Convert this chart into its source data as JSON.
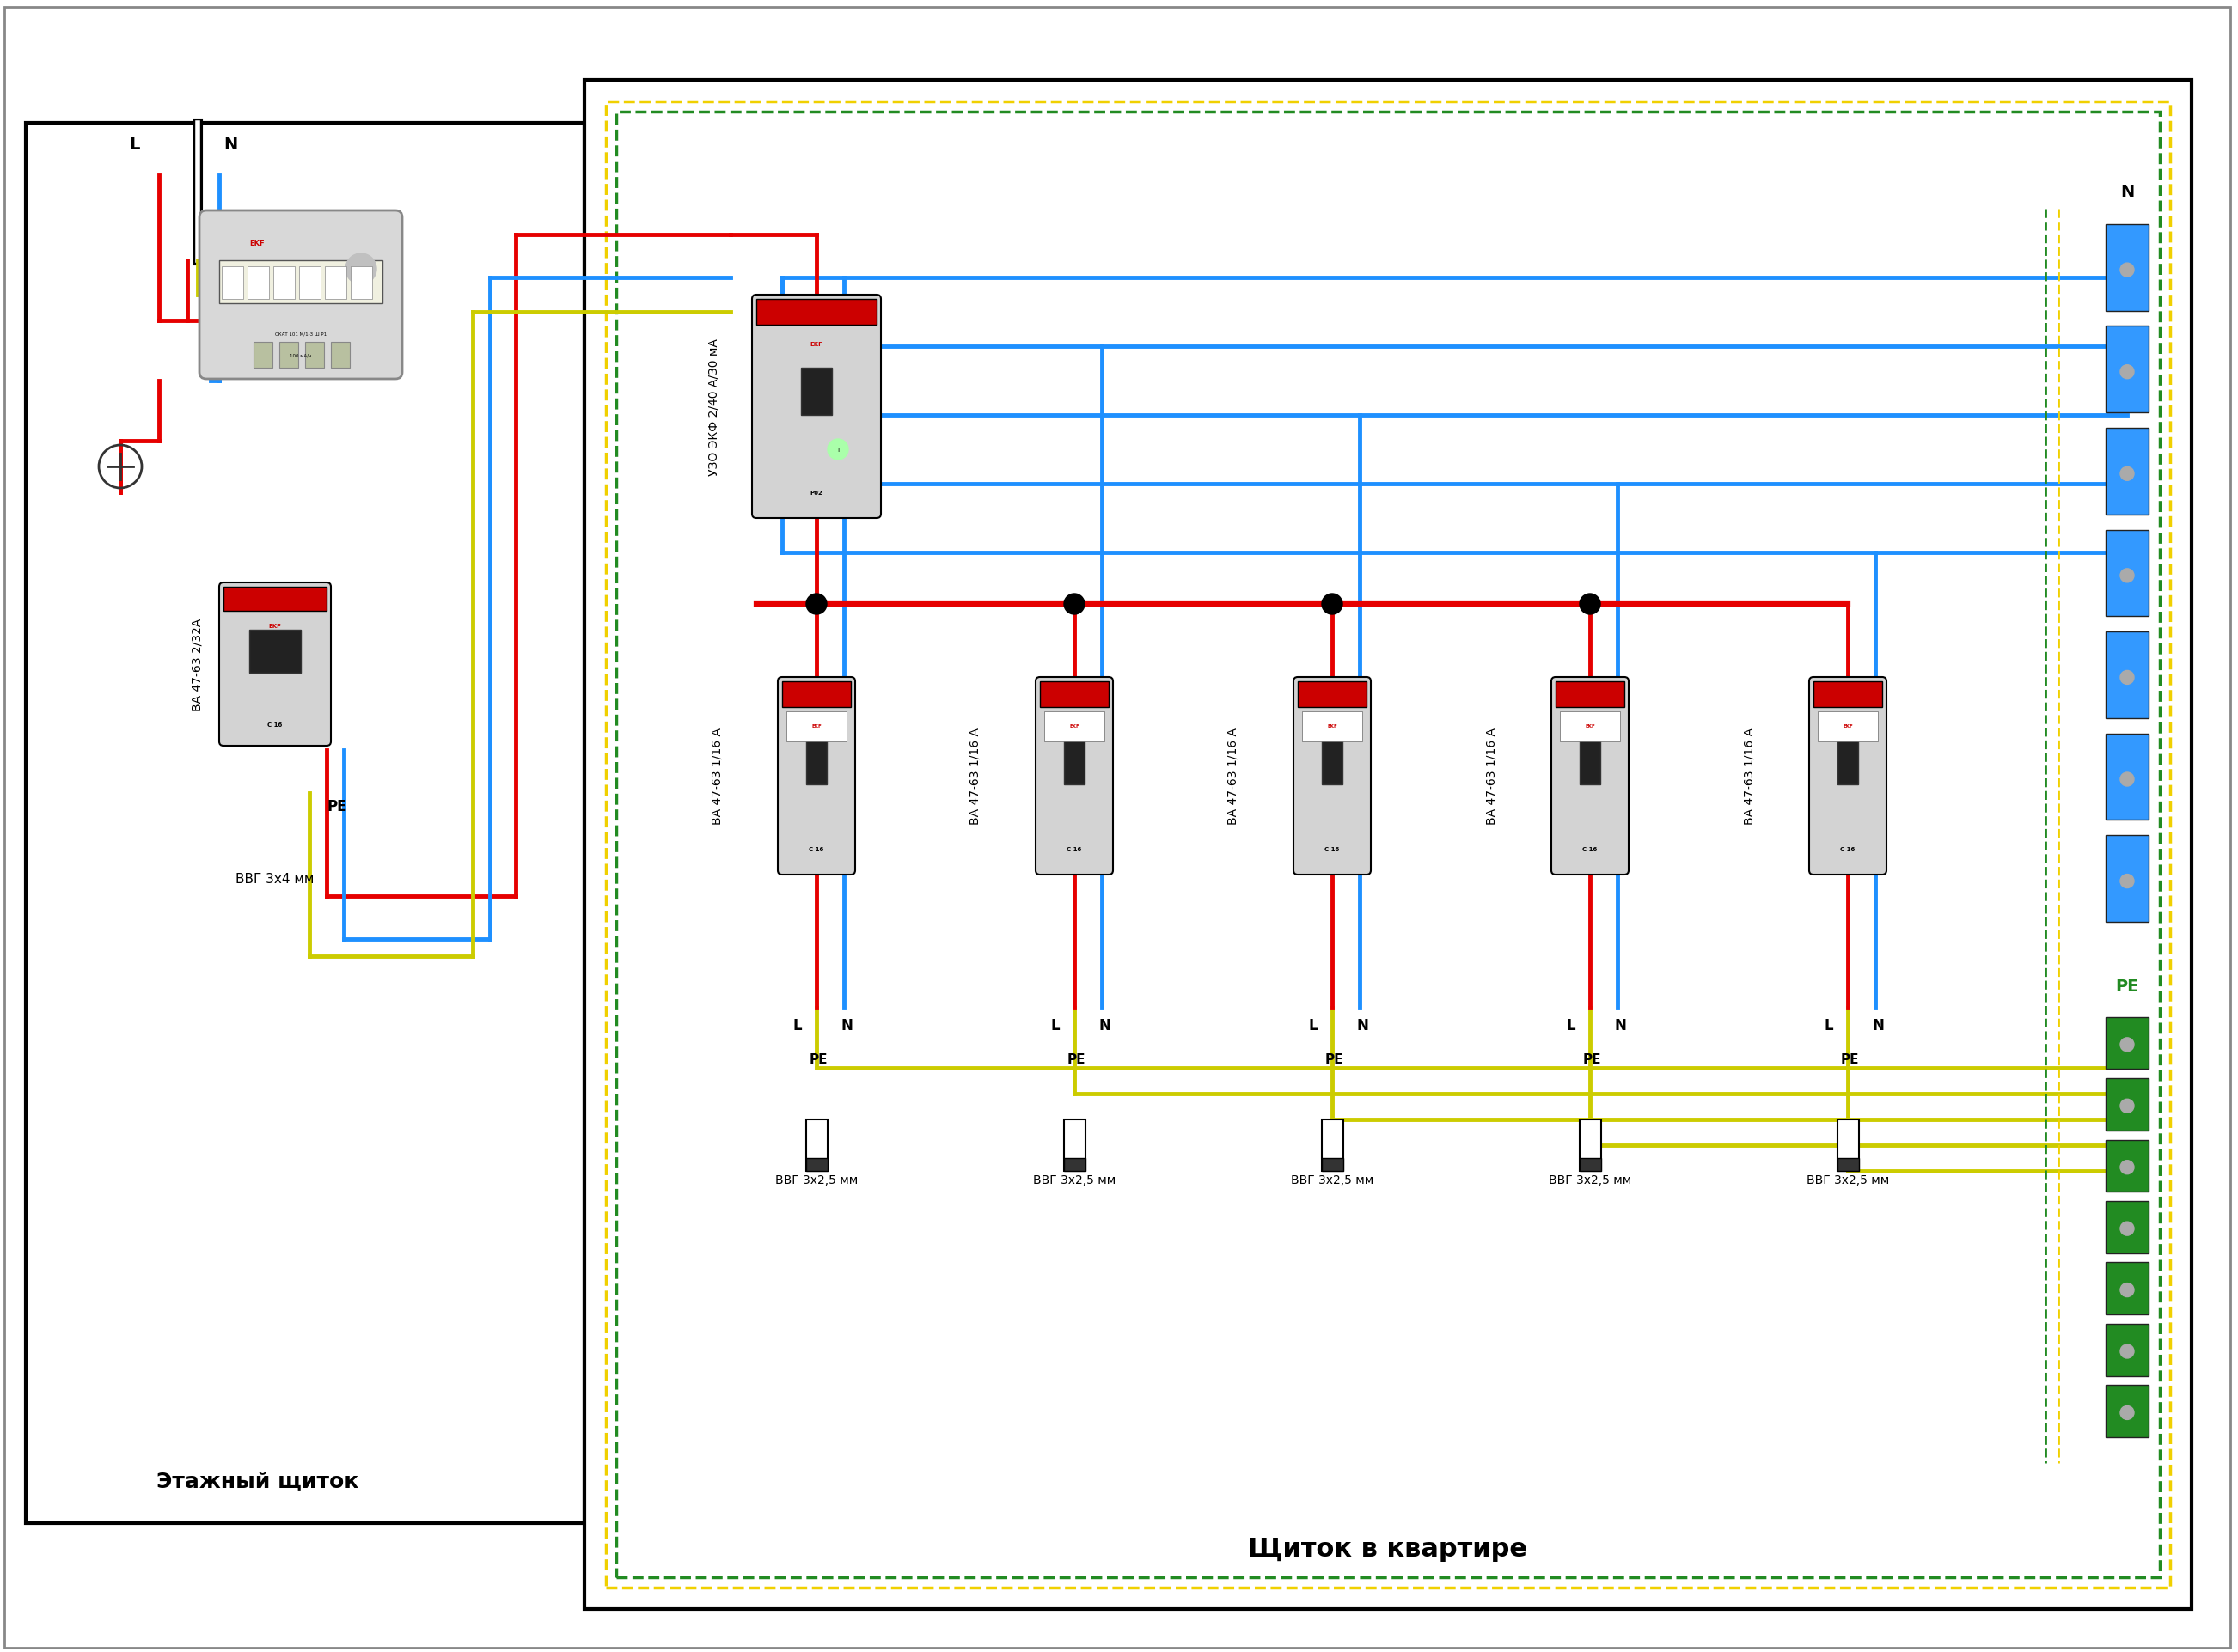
{
  "title_left": "Этажный щиток",
  "title_right": "Щиток в квартире",
  "label_L": "L",
  "label_N": "N",
  "label_PE": "PE",
  "label_N_bus": "N",
  "cable_left_panel": "ВВГ 3х4 мм",
  "cable_right_panels": "ВВГ 3х2,5 мм",
  "label_uzo": "УЗО ЭКФ 2/40 А/30 мА",
  "label_vvg_floor": "ВА 47-63 2/32А",
  "label_vvg_apt_1": "ВА 47-63 1/16 А",
  "label_vvg_apt_2": "ВА 47-63 1/16 А",
  "label_vvg_apt_3": "ВА 47-63 1/16 А",
  "label_vvg_apt_4": "ВА 47-63 1/16 А",
  "label_vvg_apt_5": "ВА 47-63 1/16 А",
  "color_red": "#e60000",
  "color_blue": "#1e90ff",
  "color_yellow_green": "#cccc00",
  "color_green": "#228B22",
  "color_black": "#000000",
  "color_bg": "#ffffff",
  "color_border": "#000000",
  "color_dashed_yellow": "#f0d000",
  "color_dashed_green": "#228B22",
  "lw_wire": 3.5,
  "lw_wire_thin": 2.5,
  "lw_border": 3.0
}
